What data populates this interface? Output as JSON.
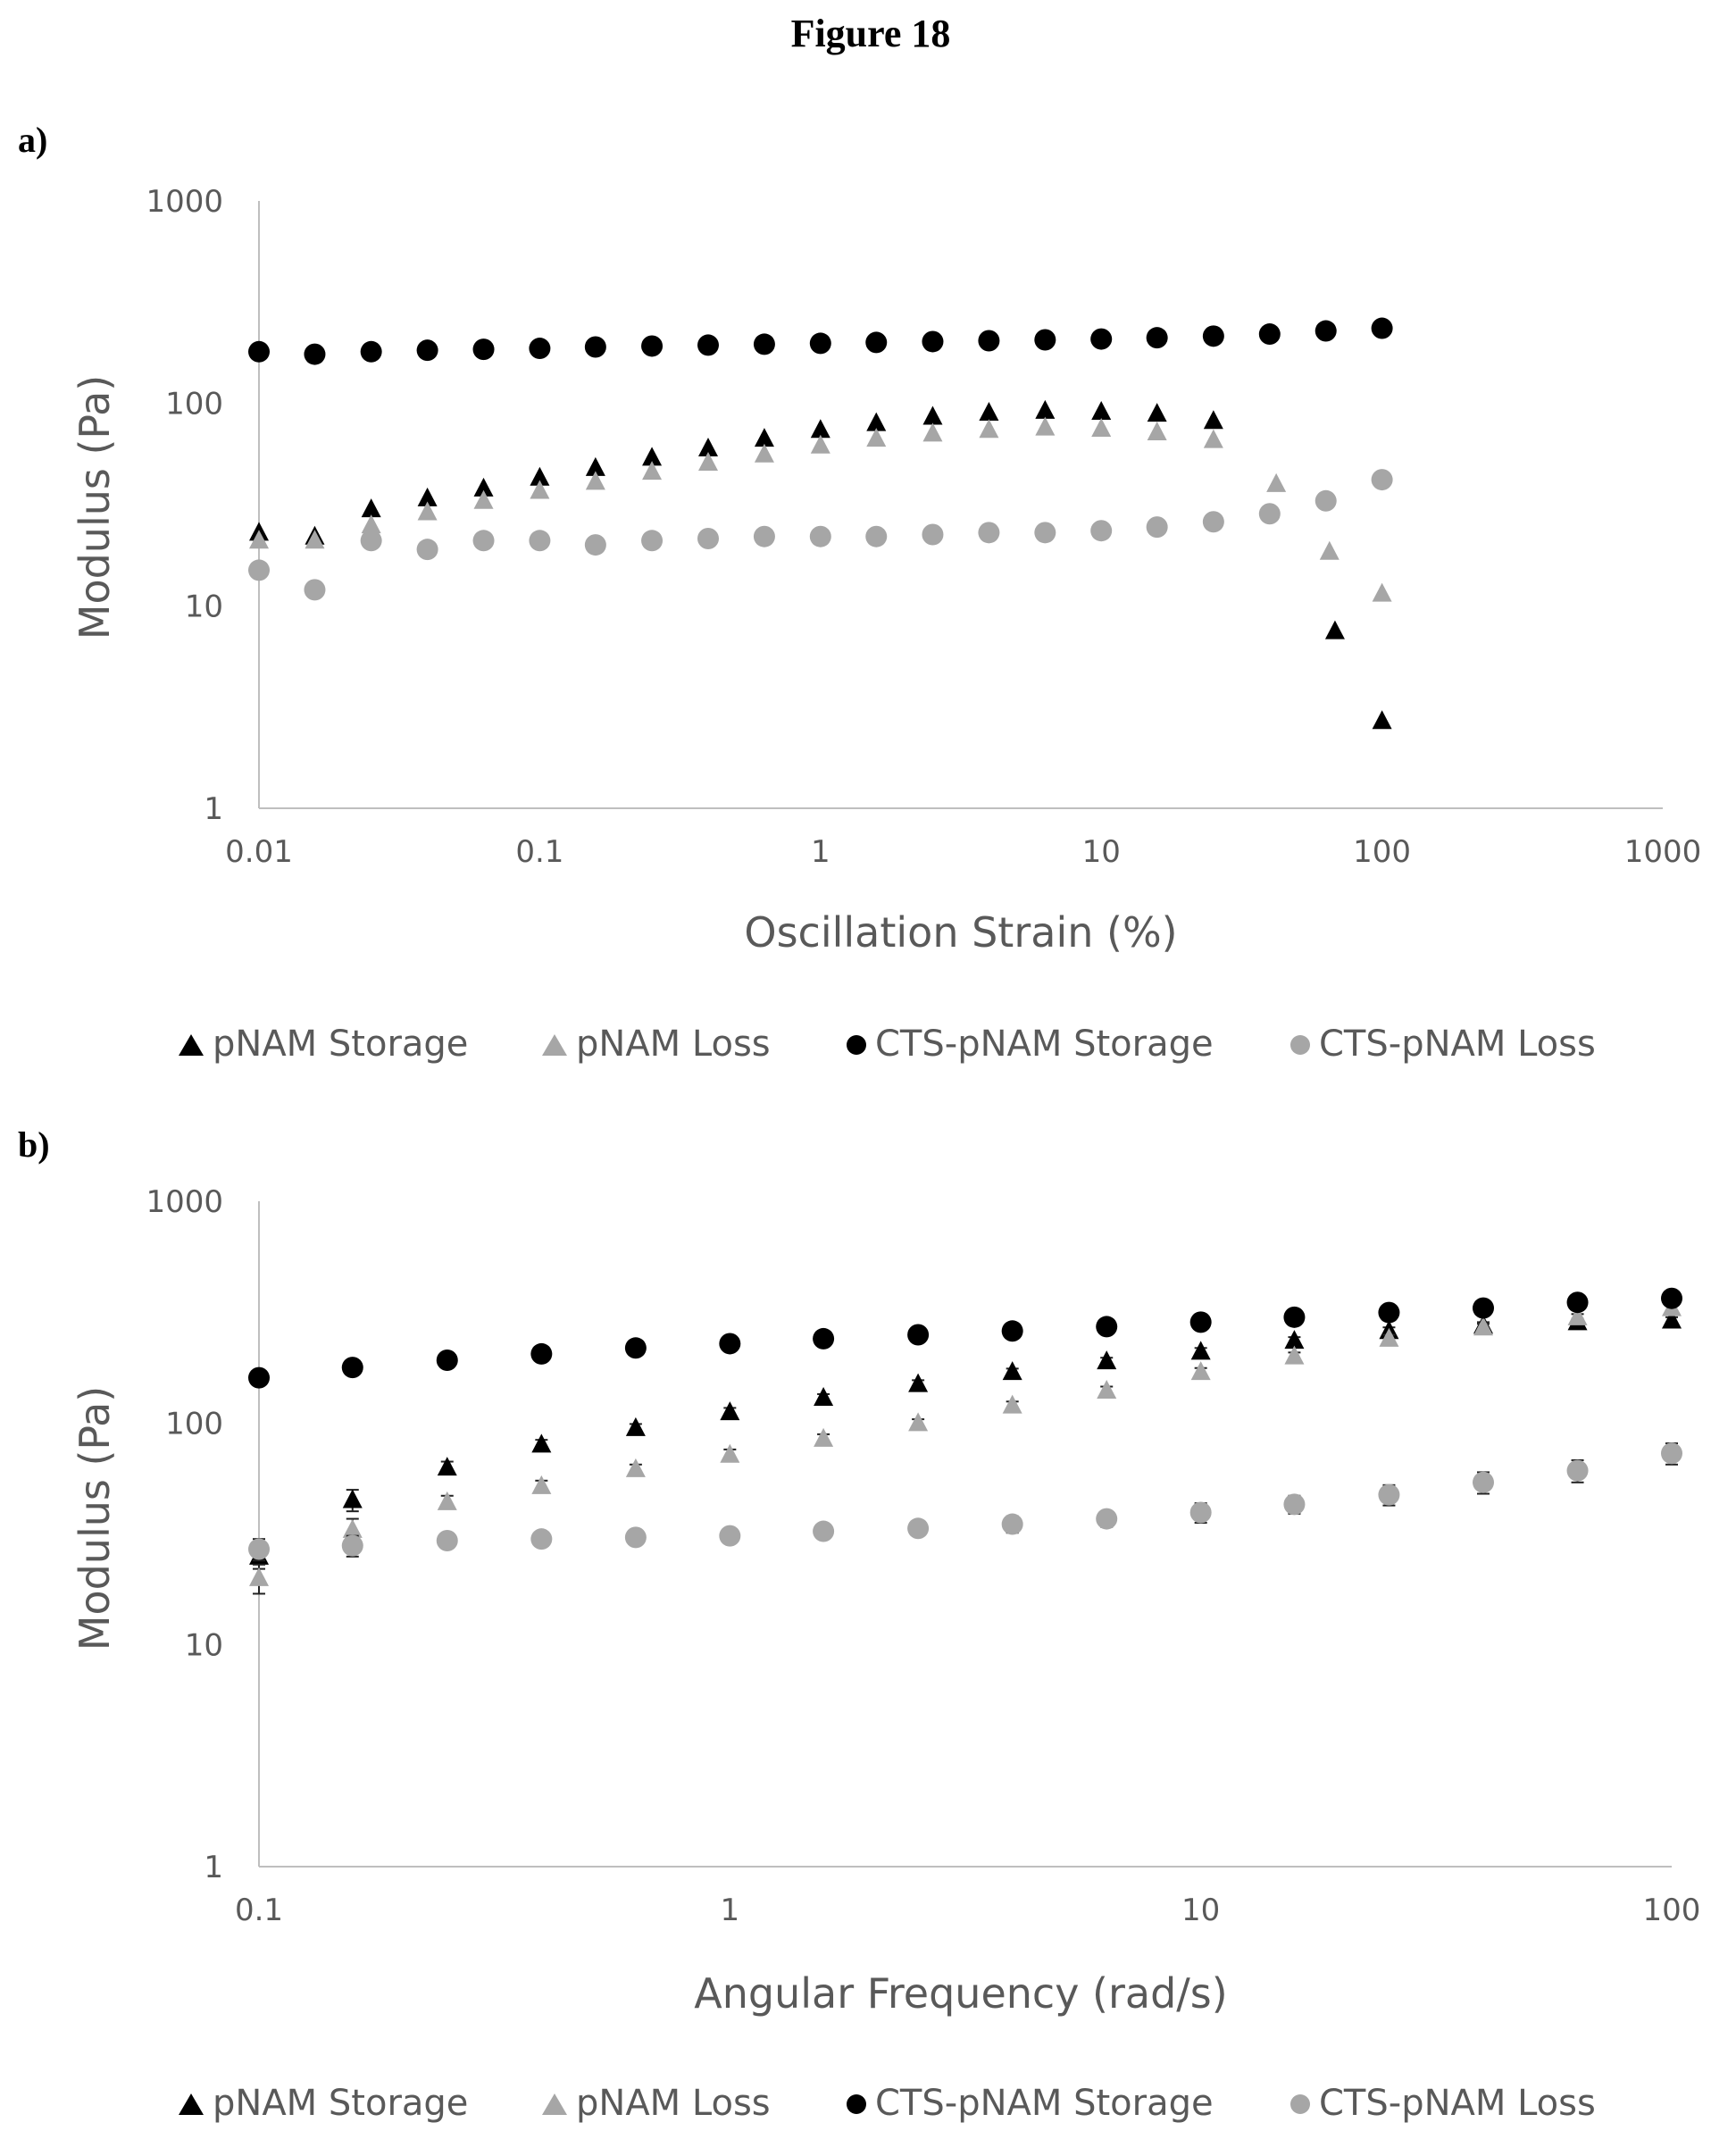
{
  "figure": {
    "title": "Figure 18"
  },
  "colors": {
    "black": "#000000",
    "grey": "#a6a6a6",
    "axis": "#bfbfbf",
    "text": "#595959"
  },
  "legend_labels": [
    "pNAM Storage",
    "pNAM Loss",
    "CTS-pNAM Storage",
    "CTS-pNAM Loss"
  ],
  "chart_data": [
    {
      "panel": "a)",
      "type": "scatter",
      "xscale": "log",
      "yscale": "log",
      "xlim": [
        0.01,
        1000
      ],
      "ylim": [
        1,
        1000
      ],
      "xticks": [
        "0.01",
        "0.1",
        "1",
        "10",
        "100",
        "1000"
      ],
      "yticks": [
        "1",
        "10",
        "100",
        "1000"
      ],
      "xlabel": "Oscillation Strain (%)",
      "ylabel": "Modulus (Pa)",
      "legend_position": "bottom",
      "series": [
        {
          "name": "pNAM Storage",
          "marker": "triangle",
          "color": "#000000",
          "x": [
            0.01,
            0.0158,
            0.0251,
            0.0398,
            0.0631,
            0.1,
            0.158,
            0.251,
            0.398,
            0.631,
            1,
            1.58,
            2.51,
            3.98,
            6.31,
            10,
            15.8,
            25.1,
            68,
            100
          ],
          "y": [
            23,
            22,
            30,
            34,
            38,
            43,
            48,
            54,
            60,
            67,
            74,
            80,
            86,
            90,
            92,
            91,
            89,
            82,
            7.5,
            2.7
          ]
        },
        {
          "name": "pNAM Loss",
          "marker": "triangle",
          "color": "#a6a6a6",
          "x": [
            0.01,
            0.0158,
            0.0251,
            0.0398,
            0.0631,
            0.1,
            0.158,
            0.251,
            0.398,
            0.631,
            1,
            1.58,
            2.51,
            3.98,
            6.31,
            10,
            15.8,
            25.1,
            42,
            65,
            100
          ],
          "y": [
            21,
            21,
            25,
            29,
            33,
            37,
            41,
            46,
            51,
            56,
            62,
            67,
            71,
            74,
            76,
            75,
            72,
            66,
            40,
            18.5,
            11.5
          ]
        },
        {
          "name": "CTS-pNAM Storage",
          "marker": "circle",
          "color": "#000000",
          "x": [
            0.01,
            0.0158,
            0.0251,
            0.0398,
            0.0631,
            0.1,
            0.158,
            0.251,
            0.398,
            0.631,
            1,
            1.58,
            2.51,
            3.98,
            6.31,
            10,
            15.8,
            25.1,
            39.8,
            63.1,
            100
          ],
          "y": [
            180,
            175,
            180,
            183,
            185,
            187,
            190,
            192,
            194,
            196,
            198,
            200,
            202,
            204,
            206,
            208,
            211,
            215,
            220,
            228,
            235
          ]
        },
        {
          "name": "CTS-pNAM Loss",
          "marker": "circle",
          "color": "#a6a6a6",
          "x": [
            0.01,
            0.0158,
            0.0251,
            0.0398,
            0.0631,
            0.1,
            0.158,
            0.251,
            0.398,
            0.631,
            1,
            1.58,
            2.51,
            3.98,
            6.31,
            10,
            15.8,
            25.1,
            39.8,
            63.1,
            100
          ],
          "y": [
            15,
            12,
            21,
            19,
            21,
            21,
            20,
            21,
            21.5,
            22,
            22,
            22,
            22.5,
            23,
            23,
            23.5,
            24.5,
            26,
            28.5,
            33,
            42
          ]
        }
      ]
    },
    {
      "panel": "b)",
      "type": "scatter",
      "xscale": "log",
      "yscale": "log",
      "xlim": [
        0.1,
        100
      ],
      "ylim": [
        1,
        1000
      ],
      "xticks": [
        "0.1",
        "1",
        "10",
        "100"
      ],
      "yticks": [
        "1",
        "10",
        "100",
        "1000"
      ],
      "xlabel": "Angular Frequency (rad/s)",
      "ylabel": "Modulus (Pa)",
      "legend_position": "bottom",
      "series": [
        {
          "name": "pNAM Storage",
          "marker": "triangle",
          "color": "#000000",
          "x": [
            0.1,
            0.158,
            0.251,
            0.398,
            0.631,
            1,
            1.58,
            2.51,
            3.98,
            6.31,
            10,
            15.8,
            25.1,
            39.8,
            63.1,
            100
          ],
          "y": [
            25,
            45,
            63,
            80,
            95,
            112,
            130,
            150,
            170,
            190,
            210,
            235,
            260,
            275,
            285,
            290
          ],
          "err": [
            3,
            5,
            4,
            4,
            4,
            5,
            5,
            6,
            6,
            7,
            8,
            9,
            10,
            10,
            10,
            10
          ]
        },
        {
          "name": "pNAM Loss",
          "marker": "triangle",
          "color": "#a6a6a6",
          "x": [
            0.1,
            0.158,
            0.251,
            0.398,
            0.631,
            1,
            1.58,
            2.51,
            3.98,
            6.31,
            10,
            15.8,
            25.1,
            39.8,
            63.1,
            100
          ],
          "y": [
            20,
            33,
            44,
            52,
            62,
            72,
            85,
            100,
            120,
            140,
            170,
            200,
            240,
            270,
            300,
            330
          ],
          "err": [
            3,
            4,
            3,
            3,
            3,
            4,
            4,
            4,
            5,
            6,
            7,
            8,
            10,
            10,
            10,
            10
          ]
        },
        {
          "name": "CTS-pNAM Storage",
          "marker": "circle",
          "color": "#000000",
          "x": [
            0.1,
            0.158,
            0.251,
            0.398,
            0.631,
            1,
            1.58,
            2.51,
            3.98,
            6.31,
            10,
            15.8,
            25.1,
            39.8,
            63.1,
            100
          ],
          "y": [
            160,
            178,
            192,
            205,
            218,
            228,
            240,
            250,
            260,
            272,
            285,
            300,
            315,
            330,
            350,
            365
          ]
        },
        {
          "name": "CTS-pNAM Loss",
          "marker": "circle",
          "color": "#a6a6a6",
          "x": [
            0.1,
            0.158,
            0.251,
            0.398,
            0.631,
            1,
            1.58,
            2.51,
            3.98,
            6.31,
            10,
            15.8,
            25.1,
            39.8,
            63.1,
            100
          ],
          "y": [
            27,
            28,
            29.5,
            30,
            30.5,
            31,
            32.5,
            33.5,
            35,
            37,
            39.5,
            43,
            47.5,
            54,
            61,
            73
          ],
          "err": [
            3,
            3,
            2,
            2,
            2,
            2,
            2,
            2,
            3,
            3,
            4,
            4,
            5,
            6,
            7,
            8
          ]
        }
      ]
    }
  ]
}
